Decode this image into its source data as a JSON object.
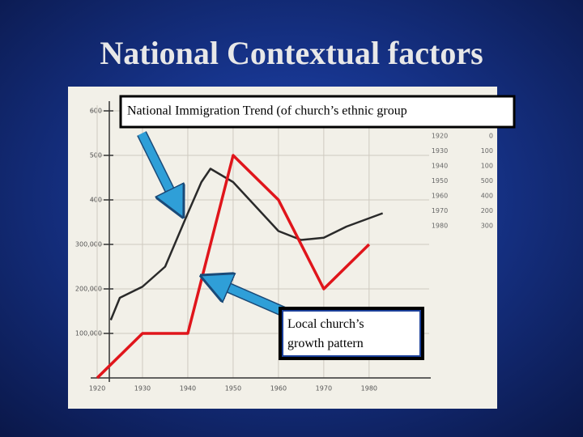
{
  "slide": {
    "title": "National Contextual factors"
  },
  "chart_data": {
    "type": "line",
    "xlim": [
      1918,
      1992
    ],
    "xticks": [
      1920,
      1930,
      1940,
      1950,
      1960,
      1970,
      1980
    ],
    "ylim": [
      0,
      600
    ],
    "yticks": [
      {
        "value": 100,
        "label": "100,000"
      },
      {
        "value": 200,
        "label": "200,000"
      },
      {
        "value": 300,
        "label": "300,000"
      },
      400,
      500,
      600
    ],
    "grid": true,
    "series": [
      {
        "name": "National Immigration Trend (of church’s ethnic group",
        "color": "#2a2a2a",
        "x": [
          1923,
          1925,
          1930,
          1935,
          1940,
          1943,
          1945,
          1950,
          1955,
          1960,
          1965,
          1970,
          1975,
          1983
        ],
        "values": [
          130,
          180,
          205,
          250,
          370,
          440,
          470,
          440,
          385,
          330,
          310,
          315,
          340,
          370
        ]
      },
      {
        "name": "Local church’s growth pattern",
        "color": "#e0151b",
        "x": [
          1920,
          1930,
          1940,
          1950,
          1960,
          1970,
          1980
        ],
        "values": [
          0,
          100,
          100,
          500,
          400,
          200,
          300
        ]
      }
    ],
    "table": {
      "rows": [
        [
          1920,
          0
        ],
        [
          1930,
          100
        ],
        [
          1940,
          100
        ],
        [
          1950,
          500
        ],
        [
          1960,
          400
        ],
        [
          1970,
          200
        ],
        [
          1980,
          300
        ]
      ]
    }
  }
}
